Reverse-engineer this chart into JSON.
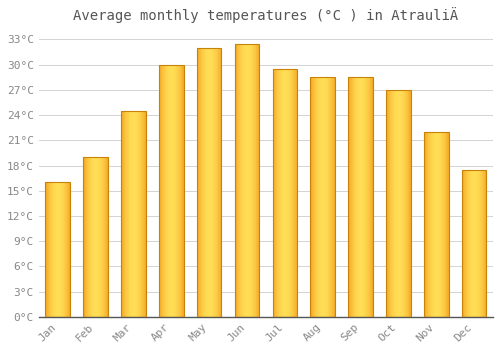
{
  "title": "Average monthly temperatures (°C ) in AtrauliÄ",
  "months": [
    "Jan",
    "Feb",
    "Mar",
    "Apr",
    "May",
    "Jun",
    "Jul",
    "Aug",
    "Sep",
    "Oct",
    "Nov",
    "Dec"
  ],
  "values": [
    16,
    19,
    24.5,
    30,
    32,
    32.5,
    29.5,
    28.5,
    28.5,
    27,
    22,
    17.5
  ],
  "bar_color_left": "#F5A623",
  "bar_color_center": "#FFD966",
  "bar_color_right": "#E8940A",
  "bar_edge_color": "#C8820A",
  "background_color": "#FFFFFF",
  "plot_bg_color": "#FFFFFF",
  "grid_color": "#CCCCCC",
  "text_color": "#888888",
  "ylim": [
    0,
    34
  ],
  "yticks": [
    0,
    3,
    6,
    9,
    12,
    15,
    18,
    21,
    24,
    27,
    30,
    33
  ],
  "ytick_labels": [
    "0°C",
    "3°C",
    "6°C",
    "9°C",
    "12°C",
    "15°C",
    "18°C",
    "21°C",
    "24°C",
    "27°C",
    "30°C",
    "33°C"
  ],
  "title_fontsize": 10,
  "tick_fontsize": 8,
  "bar_width": 0.65
}
